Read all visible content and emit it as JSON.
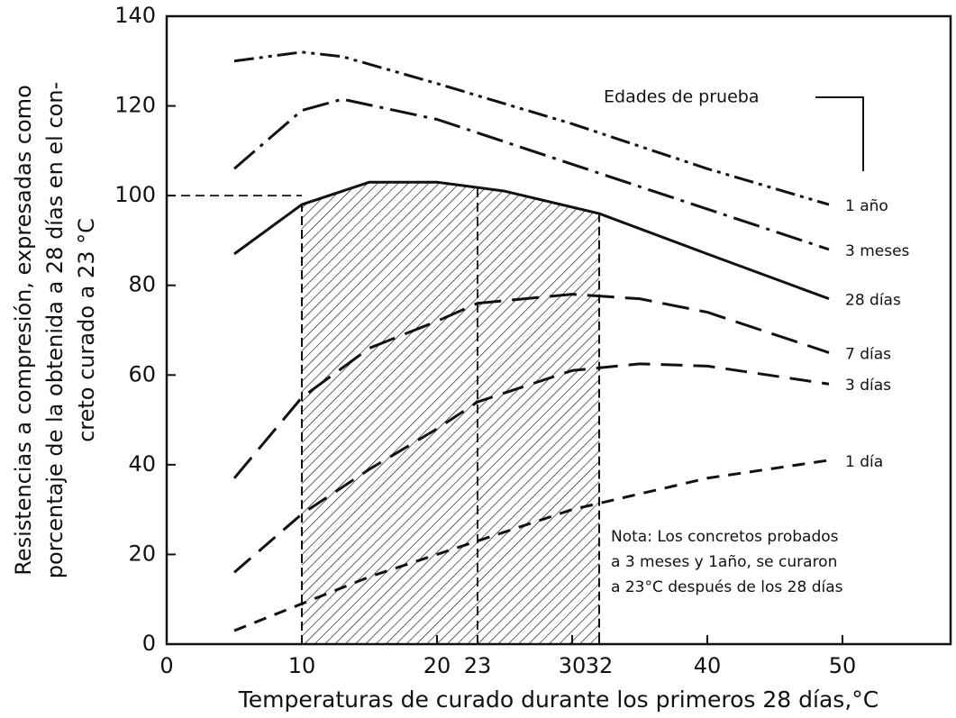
{
  "chart_data": {
    "type": "line",
    "xlabel": "Temperaturas de curado durante los primeros 28 días,°C",
    "ylabel_lines": [
      "Resistencias a compresión, expresadas como",
      "porcentaje de la obtenida a 28 días en el con-",
      "creto curado a 23 °C"
    ],
    "legend_title": "Edades de prueba",
    "note_lines": [
      "Nota: Los concretos probados",
      "a 3 meses y 1año, se curaron",
      "a 23°C después de los 28 días"
    ],
    "xlim": [
      0,
      58
    ],
    "ylim": [
      0,
      140
    ],
    "xticks": [
      0,
      10,
      20,
      23,
      30,
      32,
      40,
      50
    ],
    "yticks": [
      0,
      20,
      40,
      60,
      80,
      100,
      120,
      140
    ],
    "shaded_x": [
      10,
      32
    ],
    "shaded_series": 2,
    "reference_y": 100,
    "reference_x": 23,
    "series": [
      {
        "name": "1 año",
        "color": "#111",
        "x": [
          5,
          10,
          13,
          20,
          30,
          40,
          49
        ],
        "values": [
          130,
          132,
          131,
          125,
          116,
          106,
          98
        ]
      },
      {
        "name": "3 meses",
        "color": "#111",
        "x": [
          5,
          10,
          13,
          20,
          30,
          40,
          49
        ],
        "values": [
          106,
          119,
          121.5,
          117,
          107,
          97,
          88
        ]
      },
      {
        "name": "28 días",
        "color": "#111",
        "x": [
          5,
          10,
          15,
          20,
          25,
          32,
          40,
          49
        ],
        "values": [
          87,
          98,
          103,
          103,
          101,
          96,
          87,
          77
        ]
      },
      {
        "name": "7 días",
        "color": "#111",
        "x": [
          5,
          10,
          15,
          20,
          23,
          30,
          35,
          40,
          49
        ],
        "values": [
          37,
          55,
          66,
          72,
          76,
          78,
          77,
          74,
          65
        ]
      },
      {
        "name": "3 días",
        "color": "#111",
        "x": [
          5,
          10,
          15,
          20,
          23,
          30,
          35,
          40,
          49
        ],
        "values": [
          16,
          29,
          39,
          48,
          54,
          61,
          62.5,
          62,
          58
        ]
      },
      {
        "name": "1 día",
        "color": "#111",
        "x": [
          5,
          10,
          15,
          20,
          23,
          30,
          40,
          49
        ],
        "values": [
          3,
          9,
          15,
          20,
          23,
          30,
          37,
          41
        ]
      }
    ]
  }
}
